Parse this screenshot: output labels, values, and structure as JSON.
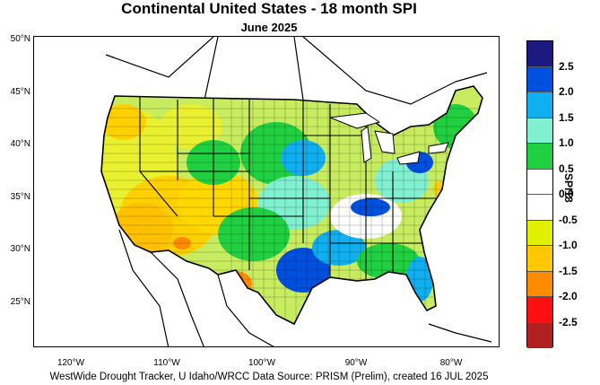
{
  "title": "Continental United States - 18 month SPI",
  "subtitle": "June 2025",
  "credit": "WestWide Drought Tracker, U Idaho/WRCC Data Source: PRISM (Prelim), created 16 JUL 2025",
  "lat_ticks": [
    "50°N",
    "45°N",
    "40°N",
    "35°N",
    "30°N",
    "25°N"
  ],
  "lon_ticks": [
    "120°W",
    "110°W",
    "100°W",
    "90°W",
    "80°W"
  ],
  "legend": {
    "title": "SPI18",
    "labels": [
      "2.5",
      "2.0",
      "1.5",
      "1.0",
      "0.5",
      "0.0",
      "-0.5",
      "-1.0",
      "-1.5",
      "-2.0",
      "-2.5"
    ],
    "colors": [
      "#1a1a80",
      "#0050e0",
      "#10b0f0",
      "#80f0d0",
      "#20d040",
      "#ffffff",
      "#ffffff",
      "#e0f000",
      "#ffc800",
      "#ff8c00",
      "#ff1010",
      "#b02020"
    ]
  }
}
